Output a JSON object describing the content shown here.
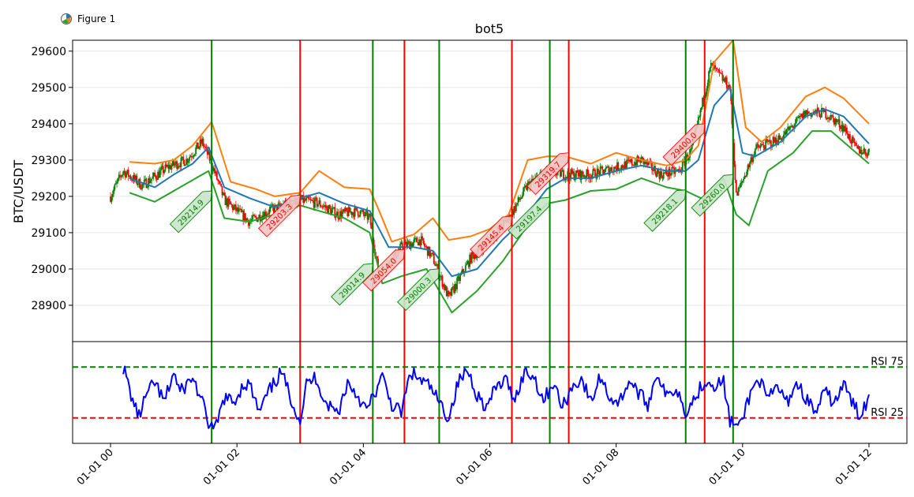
{
  "window": {
    "title": "Figure 1",
    "icon": "matplotlib-figure-icon"
  },
  "chart_data": {
    "type": "candlestick",
    "title": "bot5",
    "ylabel": "BTC/USDT",
    "ylim": [
      28800,
      29630
    ],
    "yticks": [
      28900,
      29000,
      29100,
      29200,
      29300,
      29400,
      29500,
      29600
    ],
    "xlim": [
      -0.6,
      12.6
    ],
    "xticks": [
      0,
      2,
      4,
      6,
      8,
      10,
      12
    ],
    "xtick_labels": [
      "01-01 00",
      "01-01 02",
      "01-01 04",
      "01-01 06",
      "01-01 08",
      "01-01 10",
      "01-01 12"
    ],
    "x_unit": "hours",
    "grid": "horizontal",
    "colors": {
      "up": "#008000",
      "down": "#ff0000",
      "ma": "#1f77b4",
      "upper_band": "#ff7f0e",
      "lower_band": "#2ca02c",
      "rsi": "#0000ff",
      "buy": "#008000",
      "sell": "#ff0000"
    },
    "price_path": [
      [
        0.0,
        29200
      ],
      [
        0.2,
        29270
      ],
      [
        0.5,
        29230
      ],
      [
        0.9,
        29280
      ],
      [
        1.2,
        29300
      ],
      [
        1.45,
        29350
      ],
      [
        1.6,
        29290
      ],
      [
        1.8,
        29190
      ],
      [
        2.2,
        29130
      ],
      [
        2.5,
        29160
      ],
      [
        3.0,
        29190
      ],
      [
        3.3,
        29180
      ],
      [
        3.6,
        29150
      ],
      [
        3.9,
        29160
      ],
      [
        4.1,
        29140
      ],
      [
        4.25,
        28980
      ],
      [
        4.6,
        29060
      ],
      [
        4.9,
        29080
      ],
      [
        5.1,
        29030
      ],
      [
        5.35,
        28920
      ],
      [
        5.7,
        29030
      ],
      [
        6.0,
        29080
      ],
      [
        6.3,
        29140
      ],
      [
        6.6,
        29230
      ],
      [
        6.9,
        29270
      ],
      [
        7.2,
        29260
      ],
      [
        7.6,
        29260
      ],
      [
        8.0,
        29280
      ],
      [
        8.4,
        29300
      ],
      [
        8.7,
        29260
      ],
      [
        9.0,
        29270
      ],
      [
        9.2,
        29330
      ],
      [
        9.5,
        29560
      ],
      [
        9.8,
        29500
      ],
      [
        9.9,
        29200
      ],
      [
        10.2,
        29330
      ],
      [
        10.6,
        29360
      ],
      [
        11.0,
        29430
      ],
      [
        11.3,
        29430
      ],
      [
        11.6,
        29390
      ],
      [
        11.8,
        29330
      ],
      [
        12.0,
        29320
      ]
    ],
    "series": [
      {
        "name": "",
        "role": "moving-average",
        "color": "#1f77b4",
        "points": [
          [
            0.3,
            29250
          ],
          [
            0.7,
            29225
          ],
          [
            1.0,
            29260
          ],
          [
            1.3,
            29290
          ],
          [
            1.55,
            29335
          ],
          [
            1.8,
            29225
          ],
          [
            2.2,
            29195
          ],
          [
            2.6,
            29170
          ],
          [
            3.0,
            29195
          ],
          [
            3.3,
            29210
          ],
          [
            3.7,
            29180
          ],
          [
            4.1,
            29160
          ],
          [
            4.4,
            29060
          ],
          [
            4.8,
            29060
          ],
          [
            5.1,
            29050
          ],
          [
            5.4,
            28980
          ],
          [
            5.8,
            29000
          ],
          [
            6.2,
            29080
          ],
          [
            6.5,
            29130
          ],
          [
            6.9,
            29220
          ],
          [
            7.2,
            29250
          ],
          [
            7.6,
            29250
          ],
          [
            8.0,
            29270
          ],
          [
            8.4,
            29285
          ],
          [
            8.8,
            29270
          ],
          [
            9.1,
            29270
          ],
          [
            9.3,
            29300
          ],
          [
            9.55,
            29450
          ],
          [
            9.8,
            29500
          ],
          [
            10.0,
            29320
          ],
          [
            10.2,
            29310
          ],
          [
            10.6,
            29350
          ],
          [
            11.0,
            29420
          ],
          [
            11.3,
            29440
          ],
          [
            11.6,
            29420
          ],
          [
            12.0,
            29345
          ]
        ]
      },
      {
        "name": "",
        "role": "upper-band",
        "color": "#ff7f0e",
        "points": [
          [
            0.3,
            29295
          ],
          [
            0.7,
            29290
          ],
          [
            1.0,
            29300
          ],
          [
            1.3,
            29340
          ],
          [
            1.6,
            29405
          ],
          [
            1.9,
            29240
          ],
          [
            2.3,
            29220
          ],
          [
            2.6,
            29200
          ],
          [
            3.0,
            29210
          ],
          [
            3.3,
            29270
          ],
          [
            3.7,
            29225
          ],
          [
            4.1,
            29220
          ],
          [
            4.25,
            29160
          ],
          [
            4.45,
            29075
          ],
          [
            4.8,
            29095
          ],
          [
            5.1,
            29140
          ],
          [
            5.35,
            29080
          ],
          [
            5.7,
            29090
          ],
          [
            6.0,
            29110
          ],
          [
            6.3,
            29150
          ],
          [
            6.6,
            29300
          ],
          [
            6.9,
            29310
          ],
          [
            7.2,
            29310
          ],
          [
            7.6,
            29290
          ],
          [
            8.0,
            29320
          ],
          [
            8.4,
            29300
          ],
          [
            8.8,
            29285
          ],
          [
            9.1,
            29300
          ],
          [
            9.3,
            29340
          ],
          [
            9.55,
            29570
          ],
          [
            9.85,
            29630
          ],
          [
            10.05,
            29390
          ],
          [
            10.3,
            29350
          ],
          [
            10.6,
            29390
          ],
          [
            11.0,
            29475
          ],
          [
            11.3,
            29500
          ],
          [
            11.6,
            29470
          ],
          [
            12.0,
            29400
          ]
        ]
      },
      {
        "name": "",
        "role": "lower-band",
        "color": "#2ca02c",
        "points": [
          [
            0.3,
            29210
          ],
          [
            0.7,
            29185
          ],
          [
            1.0,
            29215
          ],
          [
            1.3,
            29245
          ],
          [
            1.55,
            29270
          ],
          [
            1.8,
            29140
          ],
          [
            2.2,
            29130
          ],
          [
            2.6,
            29150
          ],
          [
            3.0,
            29175
          ],
          [
            3.3,
            29160
          ],
          [
            3.7,
            29140
          ],
          [
            4.1,
            29100
          ],
          [
            4.3,
            28960
          ],
          [
            4.6,
            28980
          ],
          [
            5.0,
            29000
          ],
          [
            5.4,
            28880
          ],
          [
            5.8,
            28940
          ],
          [
            6.2,
            29020
          ],
          [
            6.6,
            29120
          ],
          [
            6.9,
            29180
          ],
          [
            7.2,
            29190
          ],
          [
            7.6,
            29215
          ],
          [
            8.0,
            29220
          ],
          [
            8.4,
            29250
          ],
          [
            8.8,
            29225
          ],
          [
            9.1,
            29215
          ],
          [
            9.4,
            29190
          ],
          [
            9.7,
            29250
          ],
          [
            9.9,
            29150
          ],
          [
            10.1,
            29120
          ],
          [
            10.4,
            29270
          ],
          [
            10.8,
            29320
          ],
          [
            11.1,
            29380
          ],
          [
            11.4,
            29380
          ],
          [
            11.8,
            29320
          ],
          [
            12.0,
            29290
          ]
        ]
      }
    ],
    "signals": [
      {
        "side": "buy",
        "x": 1.6,
        "price": 29214.9,
        "label": "29214.9"
      },
      {
        "side": "sell",
        "x": 3.0,
        "price": 29203.3,
        "label": "29203.3"
      },
      {
        "side": "buy",
        "x": 4.15,
        "price": 29014.9,
        "label": "29014.9"
      },
      {
        "side": "sell",
        "x": 4.65,
        "price": 29054.0,
        "label": "29054.0"
      },
      {
        "side": "buy",
        "x": 5.2,
        "price": 29000.3,
        "label": "29000.3"
      },
      {
        "side": "sell",
        "x": 6.35,
        "price": 29145.4,
        "label": "29145.4"
      },
      {
        "side": "buy",
        "x": 6.95,
        "price": 29197.4,
        "label": "29197.4"
      },
      {
        "side": "sell",
        "x": 7.25,
        "price": 29319.7,
        "label": "29319.7"
      },
      {
        "side": "buy",
        "x": 9.1,
        "price": 29218.1,
        "label": "29218.1"
      },
      {
        "side": "sell",
        "x": 9.4,
        "price": 29400.0,
        "label": "29400.0"
      },
      {
        "side": "buy",
        "x": 9.85,
        "price": 29260.0,
        "label": "29260.0"
      }
    ],
    "rsi": {
      "ylim": [
        0,
        100
      ],
      "upper": {
        "value": 75,
        "label": "RSI 75",
        "color": "#008000"
      },
      "lower": {
        "value": 25,
        "label": "RSI 25",
        "color": "#ff0000"
      },
      "points": [
        [
          0.2,
          75
        ],
        [
          0.35,
          42
        ],
        [
          0.45,
          26
        ],
        [
          0.55,
          45
        ],
        [
          0.7,
          60
        ],
        [
          0.85,
          40
        ],
        [
          1.0,
          70
        ],
        [
          1.1,
          50
        ],
        [
          1.3,
          65
        ],
        [
          1.45,
          40
        ],
        [
          1.55,
          20
        ],
        [
          1.65,
          12
        ],
        [
          1.8,
          45
        ],
        [
          1.95,
          40
        ],
        [
          2.1,
          58
        ],
        [
          2.2,
          58
        ],
        [
          2.35,
          30
        ],
        [
          2.5,
          50
        ],
        [
          2.7,
          70
        ],
        [
          2.85,
          45
        ],
        [
          3.0,
          22
        ],
        [
          3.1,
          58
        ],
        [
          3.25,
          65
        ],
        [
          3.4,
          40
        ],
        [
          3.6,
          30
        ],
        [
          3.75,
          60
        ],
        [
          3.9,
          48
        ],
        [
          4.05,
          32
        ],
        [
          4.15,
          45
        ],
        [
          4.3,
          65
        ],
        [
          4.45,
          38
        ],
        [
          4.6,
          30
        ],
        [
          4.75,
          70
        ],
        [
          4.9,
          62
        ],
        [
          5.05,
          56
        ],
        [
          5.2,
          40
        ],
        [
          5.35,
          25
        ],
        [
          5.5,
          60
        ],
        [
          5.65,
          72
        ],
        [
          5.8,
          48
        ],
        [
          5.95,
          35
        ],
        [
          6.1,
          55
        ],
        [
          6.25,
          62
        ],
        [
          6.4,
          44
        ],
        [
          6.55,
          70
        ],
        [
          6.7,
          66
        ],
        [
          6.85,
          42
        ],
        [
          7.0,
          60
        ],
        [
          7.15,
          35
        ],
        [
          7.3,
          55
        ],
        [
          7.45,
          64
        ],
        [
          7.6,
          40
        ],
        [
          7.75,
          66
        ],
        [
          7.9,
          45
        ],
        [
          8.05,
          40
        ],
        [
          8.2,
          62
        ],
        [
          8.35,
          50
        ],
        [
          8.5,
          38
        ],
        [
          8.65,
          70
        ],
        [
          8.8,
          45
        ],
        [
          8.95,
          55
        ],
        [
          9.1,
          32
        ],
        [
          9.2,
          40
        ],
        [
          9.4,
          62
        ],
        [
          9.55,
          58
        ],
        [
          9.7,
          60
        ],
        [
          9.8,
          22
        ],
        [
          9.95,
          15
        ],
        [
          10.1,
          45
        ],
        [
          10.25,
          65
        ],
        [
          10.4,
          42
        ],
        [
          10.55,
          56
        ],
        [
          10.7,
          40
        ],
        [
          10.85,
          60
        ],
        [
          11.0,
          45
        ],
        [
          11.15,
          30
        ],
        [
          11.3,
          50
        ],
        [
          11.45,
          40
        ],
        [
          11.6,
          58
        ],
        [
          11.75,
          38
        ],
        [
          11.85,
          28
        ],
        [
          12.0,
          45
        ]
      ]
    }
  }
}
